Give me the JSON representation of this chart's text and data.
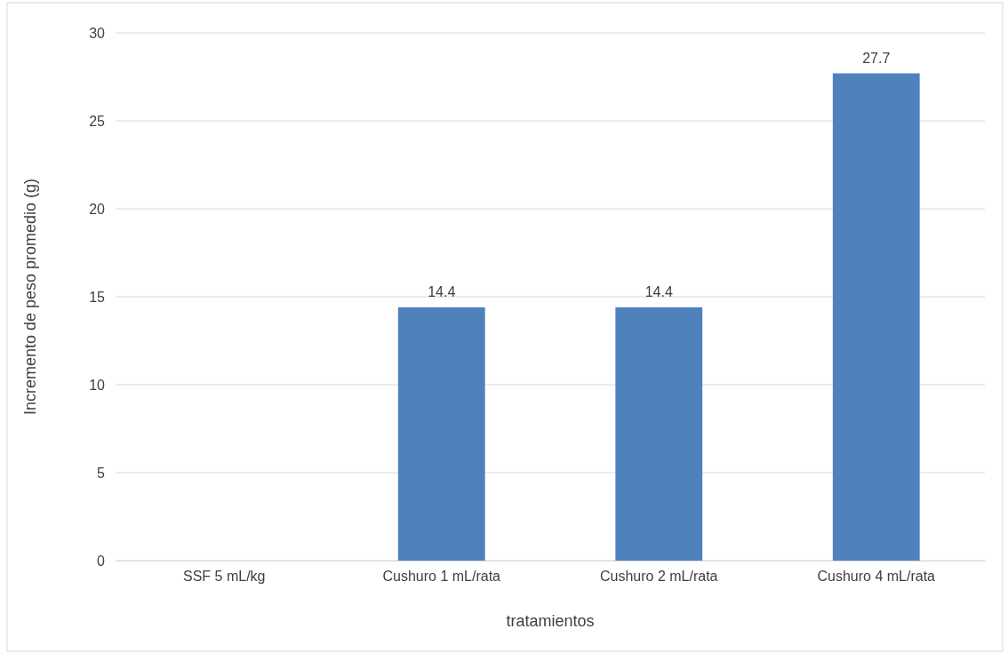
{
  "chart_data": {
    "type": "bar",
    "xlabel": "tratamientos",
    "ylabel": "Incremento de peso promedio (g)",
    "categories": [
      "SSF 5 mL/kg",
      "Cushuro 1 mL/rata",
      "Cushuro 2 mL/rata",
      "Cushuro 4 mL/rata"
    ],
    "values": [
      0,
      14.4,
      14.4,
      27.7
    ],
    "value_labels": [
      null,
      "14.4",
      "14.4",
      "27.7"
    ],
    "color": "#4f81bd",
    "ylim": [
      0,
      30
    ],
    "yticks": [
      0,
      5,
      10,
      15,
      20,
      25,
      30
    ],
    "grid": "y"
  }
}
